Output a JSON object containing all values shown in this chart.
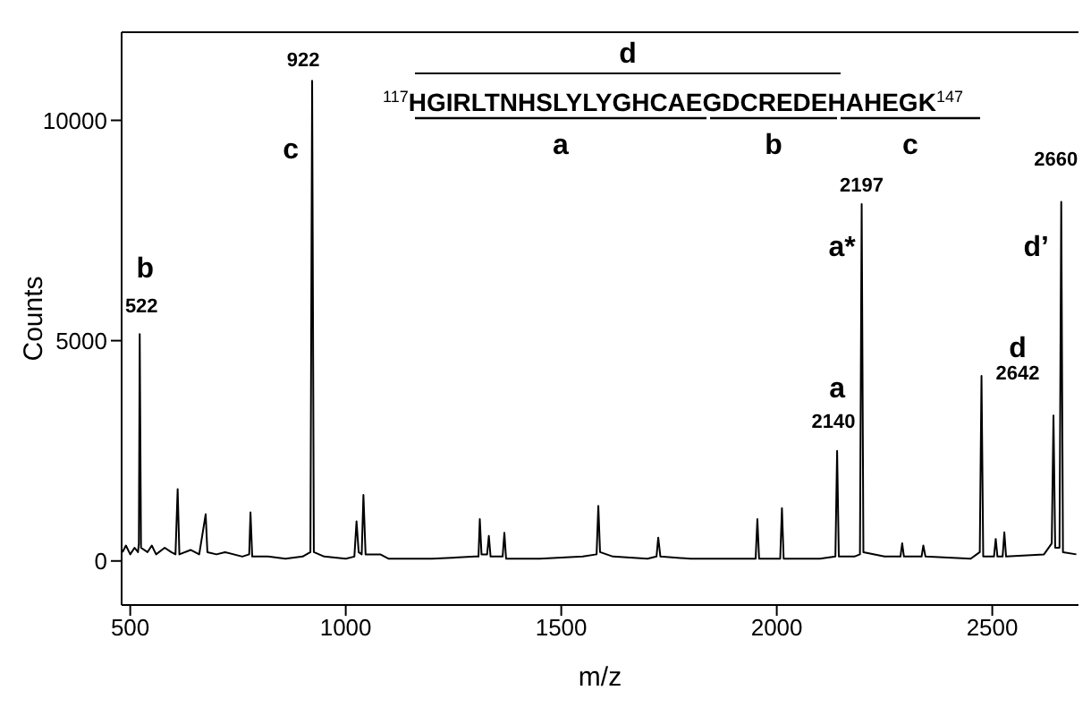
{
  "chart_data": {
    "type": "line",
    "xlabel": "m/z",
    "ylabel": "Counts",
    "x": [
      482,
      490,
      500,
      510,
      518,
      520,
      522,
      525,
      540,
      550,
      560,
      580,
      595,
      605,
      610,
      614,
      640,
      660,
      675,
      679,
      700,
      720,
      760,
      776,
      779,
      783,
      820,
      860,
      900,
      918,
      922,
      926,
      950,
      1000,
      1020,
      1025,
      1030,
      1037,
      1041,
      1046,
      1080,
      1100,
      1200,
      1300,
      1308,
      1311,
      1315,
      1328,
      1332,
      1336,
      1364,
      1368,
      1372,
      1450,
      1550,
      1582,
      1586,
      1590,
      1620,
      1700,
      1721,
      1725,
      1730,
      1800,
      1900,
      1951,
      1955,
      1959,
      2008,
      2012,
      2016,
      2100,
      2136,
      2140,
      2144,
      2180,
      2193,
      2197,
      2201,
      2250,
      2287,
      2291,
      2295,
      2336,
      2340,
      2345,
      2450,
      2471,
      2475,
      2479,
      2504,
      2508,
      2512,
      2524,
      2528,
      2532,
      2620,
      2638,
      2642,
      2646,
      2656,
      2660,
      2664,
      2695
    ],
    "values": [
      200,
      350,
      150,
      300,
      200,
      400,
      5150,
      300,
      200,
      350,
      150,
      300,
      200,
      150,
      1630,
      150,
      250,
      150,
      1060,
      200,
      150,
      200,
      100,
      150,
      1100,
      100,
      100,
      50,
      100,
      200,
      10900,
      200,
      100,
      50,
      100,
      900,
      200,
      150,
      1500,
      150,
      150,
      50,
      50,
      100,
      100,
      950,
      150,
      150,
      570,
      100,
      100,
      640,
      50,
      50,
      100,
      150,
      1250,
      200,
      100,
      50,
      100,
      530,
      100,
      50,
      50,
      50,
      950,
      50,
      50,
      1200,
      50,
      50,
      100,
      2500,
      100,
      100,
      150,
      8100,
      200,
      100,
      100,
      400,
      100,
      100,
      350,
      100,
      50,
      200,
      4200,
      100,
      100,
      500,
      100,
      100,
      650,
      100,
      150,
      400,
      3300,
      300,
      300,
      8150,
      200,
      150
    ],
    "color": "#000000",
    "xlim": [
      480,
      2700
    ],
    "xticks": [
      500,
      1000,
      1500,
      2000,
      2500
    ],
    "ylim": [
      -1000,
      12000
    ],
    "yticks": [
      0,
      5000,
      10000
    ],
    "grid": false,
    "legend": false,
    "annotations": [
      {
        "text": "522",
        "x": 522,
        "y": 5150
      },
      {
        "text": "b",
        "x": 522,
        "y": 5150
      },
      {
        "text": "922",
        "x": 922,
        "y": 10900
      },
      {
        "text": "c",
        "x": 922,
        "y": 10900
      },
      {
        "text": "2197",
        "x": 2197,
        "y": 8100
      },
      {
        "text": "a*",
        "x": 2197,
        "y": 8100
      },
      {
        "text": "2660",
        "x": 2660,
        "y": 8150
      },
      {
        "text": "d’",
        "x": 2660,
        "y": 8150
      },
      {
        "text": "a",
        "x": 2140,
        "y": 2500
      },
      {
        "text": "2140",
        "x": 2140,
        "y": 2500
      },
      {
        "text": "d",
        "x": 2642,
        "y": 3300
      },
      {
        "text": "2642",
        "x": 2642,
        "y": 3300
      },
      "d",
      "$^{117}$HGIRLTNHSLYLYGHCAEGDCREDEHAHEGK$^{147}$",
      "a",
      "b",
      "c"
    ]
  }
}
